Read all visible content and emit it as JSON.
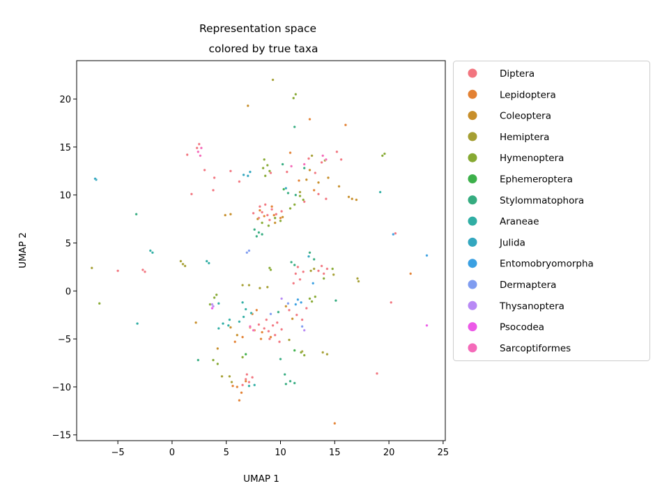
{
  "chart_data": {
    "type": "scatter",
    "title_lines": [
      "Representation space",
      "colored by true taxa"
    ],
    "xlabel": "UMAP 1",
    "ylabel": "UMAP 2",
    "xlim": [
      -8.8,
      25.2
    ],
    "ylim": [
      -15.6,
      24.0
    ],
    "xticks": [
      -5,
      0,
      5,
      10,
      15,
      20,
      25
    ],
    "yticks": [
      -15,
      -10,
      -5,
      0,
      5,
      10,
      15,
      20
    ],
    "grid": false,
    "legend_position": "outside-right",
    "series": [
      {
        "name": "Diptera",
        "color": "#f2757f",
        "points": [
          [
            8.3,
            8.2
          ],
          [
            8.8,
            7.9
          ],
          [
            9.2,
            8.5
          ],
          [
            8.0,
            7.6
          ],
          [
            9.6,
            8.0
          ],
          [
            10.1,
            8.3
          ],
          [
            8.6,
            9.0
          ],
          [
            7.5,
            8.1
          ],
          [
            9.0,
            7.4
          ],
          [
            8.1,
            8.8
          ],
          [
            9.3,
            -3.6
          ],
          [
            8.9,
            -4.2
          ],
          [
            9.7,
            -3.3
          ],
          [
            8.5,
            -3.9
          ],
          [
            9.5,
            -4.6
          ],
          [
            8.0,
            -3.5
          ],
          [
            10.1,
            -4.0
          ],
          [
            9.0,
            -5.0
          ],
          [
            8.7,
            -3.0
          ],
          [
            9.9,
            -5.3
          ],
          [
            11.4,
            1.8
          ],
          [
            11.8,
            1.2
          ],
          [
            12.1,
            2.0
          ],
          [
            11.2,
            0.8
          ],
          [
            11.6,
            2.5
          ],
          [
            13.5,
            2.1
          ],
          [
            14.0,
            1.8
          ],
          [
            14.3,
            2.3
          ],
          [
            13.8,
            2.6
          ],
          [
            6.8,
            -9.2
          ],
          [
            7.1,
            -9.5
          ],
          [
            6.5,
            -9.8
          ],
          [
            7.4,
            -9.0
          ],
          [
            6.9,
            -8.7
          ],
          [
            11.5,
            -2.5
          ],
          [
            12.0,
            -3.0
          ],
          [
            10.8,
            -2.0
          ],
          [
            12.4,
            -1.8
          ],
          [
            13.2,
            12.3
          ],
          [
            13.8,
            13.4
          ],
          [
            12.6,
            13.8
          ],
          [
            15.2,
            14.5
          ],
          [
            15.6,
            13.7
          ],
          [
            10.6,
            12.4
          ],
          [
            9.1,
            12.3
          ],
          [
            2.3,
            14.9
          ],
          [
            2.5,
            15.3
          ],
          [
            1.8,
            10.1
          ],
          [
            1.4,
            14.2
          ],
          [
            3.0,
            12.6
          ],
          [
            3.9,
            11.8
          ],
          [
            3.8,
            10.5
          ],
          [
            5.4,
            12.5
          ],
          [
            6.2,
            11.4
          ],
          [
            -5.0,
            2.1
          ],
          [
            -2.7,
            2.2
          ],
          [
            -2.5,
            2.0
          ],
          [
            18.9,
            -8.6
          ],
          [
            20.2,
            -1.2
          ],
          [
            20.6,
            6.0
          ],
          [
            12.2,
            9.3
          ],
          [
            13.5,
            10.1
          ],
          [
            14.2,
            9.6
          ]
        ]
      },
      {
        "name": "Lepidoptera",
        "color": "#e38133",
        "points": [
          [
            8.5,
            7.8
          ],
          [
            9.4,
            7.9
          ],
          [
            10.0,
            7.6
          ],
          [
            8.1,
            8.4
          ],
          [
            9.2,
            8.8
          ],
          [
            8.3,
            -4.3
          ],
          [
            7.6,
            -4.1
          ],
          [
            7.2,
            -3.8
          ],
          [
            9.1,
            -4.8
          ],
          [
            8.2,
            -5.0
          ],
          [
            6.2,
            -11.4
          ],
          [
            6.4,
            -10.6
          ],
          [
            6.0,
            -10.0
          ],
          [
            5.6,
            -9.9
          ],
          [
            6.8,
            -9.4
          ],
          [
            5.8,
            -5.3
          ],
          [
            6.5,
            -4.8
          ],
          [
            15.0,
            -13.8
          ],
          [
            22.0,
            1.8
          ],
          [
            16.0,
            17.3
          ],
          [
            12.7,
            17.9
          ],
          [
            10.9,
            14.4
          ],
          [
            11.7,
            11.5
          ],
          [
            13.1,
            10.5
          ],
          [
            7.4,
            -2.4
          ],
          [
            7.8,
            -2.0
          ]
        ]
      },
      {
        "name": "Coleoptera",
        "color": "#c78e2a",
        "points": [
          [
            7.0,
            19.3
          ],
          [
            4.9,
            7.9
          ],
          [
            5.4,
            8.0
          ],
          [
            7.9,
            7.5
          ],
          [
            9.5,
            7.1
          ],
          [
            10.2,
            7.7
          ],
          [
            12.7,
            12.6
          ],
          [
            12.4,
            11.6
          ],
          [
            13.5,
            11.3
          ],
          [
            14.4,
            11.8
          ],
          [
            2.2,
            -3.3
          ],
          [
            4.2,
            -6.0
          ],
          [
            5.4,
            -3.8
          ],
          [
            6.0,
            -4.6
          ],
          [
            10.5,
            -1.6
          ],
          [
            11.1,
            -2.9
          ],
          [
            15.4,
            10.9
          ],
          [
            16.3,
            9.8
          ],
          [
            16.6,
            9.6
          ],
          [
            17.0,
            9.5
          ]
        ]
      },
      {
        "name": "Hemiptera",
        "color": "#a59f33",
        "points": [
          [
            9.3,
            22.0
          ],
          [
            -7.4,
            2.4
          ],
          [
            0.8,
            3.1
          ],
          [
            1.0,
            2.8
          ],
          [
            1.2,
            2.6
          ],
          [
            4.6,
            -8.9
          ],
          [
            5.3,
            -8.9
          ],
          [
            5.5,
            -9.5
          ],
          [
            12.8,
            2.1
          ],
          [
            13.1,
            2.3
          ],
          [
            14.9,
            1.7
          ],
          [
            13.9,
            -6.4
          ],
          [
            14.3,
            -6.6
          ],
          [
            17.1,
            1.3
          ],
          [
            17.2,
            1.0
          ],
          [
            11.8,
            10.3
          ],
          [
            12.9,
            14.1
          ],
          [
            14.1,
            13.6
          ],
          [
            10.8,
            -5.1
          ],
          [
            12.0,
            -6.3
          ],
          [
            6.5,
            0.6
          ],
          [
            7.1,
            0.6
          ],
          [
            8.1,
            0.3
          ],
          [
            8.8,
            0.4
          ]
        ]
      },
      {
        "name": "Hymenoptera",
        "color": "#86a932",
        "points": [
          [
            11.4,
            20.5
          ],
          [
            11.2,
            20.1
          ],
          [
            19.6,
            14.3
          ],
          [
            19.4,
            14.1
          ],
          [
            8.5,
            13.7
          ],
          [
            8.4,
            12.8
          ],
          [
            8.6,
            12.0
          ],
          [
            8.8,
            13.1
          ],
          [
            9.0,
            12.5
          ],
          [
            9.5,
            7.6
          ],
          [
            10.0,
            7.3
          ],
          [
            8.3,
            7.1
          ],
          [
            8.9,
            6.8
          ],
          [
            10.9,
            8.6
          ],
          [
            11.3,
            9.0
          ],
          [
            11.8,
            9.9
          ],
          [
            12.1,
            9.5
          ],
          [
            -6.7,
            -1.3
          ],
          [
            3.8,
            -7.2
          ],
          [
            4.2,
            -7.6
          ],
          [
            6.5,
            -6.9
          ],
          [
            9.0,
            2.4
          ],
          [
            9.1,
            2.2
          ],
          [
            4.1,
            -0.4
          ],
          [
            3.9,
            -0.7
          ],
          [
            3.5,
            -1.4
          ],
          [
            12.7,
            -0.8
          ],
          [
            13.2,
            -0.6
          ],
          [
            12.9,
            -1.1
          ],
          [
            11.9,
            -6.4
          ],
          [
            12.2,
            -6.7
          ],
          [
            14.0,
            1.3
          ],
          [
            14.8,
            2.3
          ]
        ]
      },
      {
        "name": "Ephemeroptera",
        "color": "#3cb04a",
        "points": [
          [
            11.3,
            -6.2
          ],
          [
            10.3,
            10.6
          ],
          [
            6.8,
            -6.6
          ]
        ]
      },
      {
        "name": "Stylommatophora",
        "color": "#35ac80",
        "points": [
          [
            11.3,
            17.1
          ],
          [
            10.2,
            13.2
          ],
          [
            10.7,
            10.2
          ],
          [
            11.4,
            10.0
          ],
          [
            12.2,
            12.8
          ],
          [
            -3.3,
            8.0
          ],
          [
            7.6,
            6.4
          ],
          [
            8.0,
            6.1
          ],
          [
            8.3,
            5.9
          ],
          [
            7.8,
            5.7
          ],
          [
            11.0,
            3.0
          ],
          [
            11.3,
            2.7
          ],
          [
            12.7,
            4.0
          ],
          [
            13.1,
            3.3
          ],
          [
            2.4,
            -7.2
          ],
          [
            10.0,
            -7.1
          ],
          [
            10.4,
            -8.7
          ],
          [
            10.9,
            -9.4
          ],
          [
            11.3,
            -9.6
          ],
          [
            10.5,
            -9.7
          ],
          [
            15.1,
            -1.0
          ],
          [
            9.8,
            -2.2
          ]
        ]
      },
      {
        "name": "Araneae",
        "color": "#30aea4",
        "points": [
          [
            6.5,
            -1.2
          ],
          [
            6.8,
            -1.9
          ],
          [
            7.3,
            -2.3
          ],
          [
            6.2,
            -3.2
          ],
          [
            5.3,
            -3.0
          ],
          [
            4.7,
            -3.4
          ],
          [
            4.3,
            -3.9
          ],
          [
            5.2,
            -3.6
          ],
          [
            6.6,
            -2.7
          ],
          [
            4.3,
            -1.3
          ],
          [
            -3.2,
            -3.4
          ],
          [
            -2.0,
            4.2
          ],
          [
            -1.8,
            4.0
          ],
          [
            3.2,
            3.1
          ],
          [
            3.4,
            2.9
          ],
          [
            19.2,
            10.3
          ],
          [
            7.6,
            -9.8
          ],
          [
            7.1,
            -9.9
          ]
        ]
      },
      {
        "name": "Julida",
        "color": "#33a7bf",
        "points": [
          [
            -7.0,
            11.6
          ],
          [
            -7.1,
            11.7
          ],
          [
            6.6,
            12.1
          ],
          [
            7.0,
            12.0
          ],
          [
            7.2,
            12.4
          ],
          [
            12.6,
            3.6
          ],
          [
            10.5,
            10.7
          ]
        ]
      },
      {
        "name": "Entomobryomorpha",
        "color": "#3aa0e2",
        "points": [
          [
            20.4,
            5.9
          ],
          [
            23.5,
            3.7
          ],
          [
            11.6,
            -0.9
          ],
          [
            11.9,
            -1.2
          ],
          [
            11.4,
            -1.4
          ],
          [
            13.0,
            0.8
          ]
        ]
      },
      {
        "name": "Dermaptera",
        "color": "#7f9cf0",
        "points": [
          [
            6.9,
            4.0
          ],
          [
            7.1,
            4.2
          ],
          [
            12.0,
            -3.7
          ],
          [
            9.1,
            -2.4
          ],
          [
            10.7,
            -1.3
          ]
        ]
      },
      {
        "name": "Thysanoptera",
        "color": "#b889f5",
        "points": [
          [
            3.7,
            -1.4
          ],
          [
            3.8,
            -1.6
          ],
          [
            10.1,
            -0.8
          ],
          [
            12.2,
            -4.1
          ]
        ]
      },
      {
        "name": "Psocodea",
        "color": "#ec59e7",
        "points": [
          [
            23.5,
            -3.6
          ],
          [
            3.7,
            -1.8
          ]
        ]
      },
      {
        "name": "Sarcoptiformes",
        "color": "#f46ab9",
        "points": [
          [
            2.7,
            14.9
          ],
          [
            2.4,
            14.5
          ],
          [
            2.6,
            14.1
          ],
          [
            13.9,
            14.1
          ],
          [
            14.2,
            13.7
          ],
          [
            12.2,
            13.2
          ],
          [
            11.0,
            13.0
          ],
          [
            7.2,
            -3.7
          ],
          [
            7.5,
            -4.1
          ]
        ]
      }
    ]
  }
}
